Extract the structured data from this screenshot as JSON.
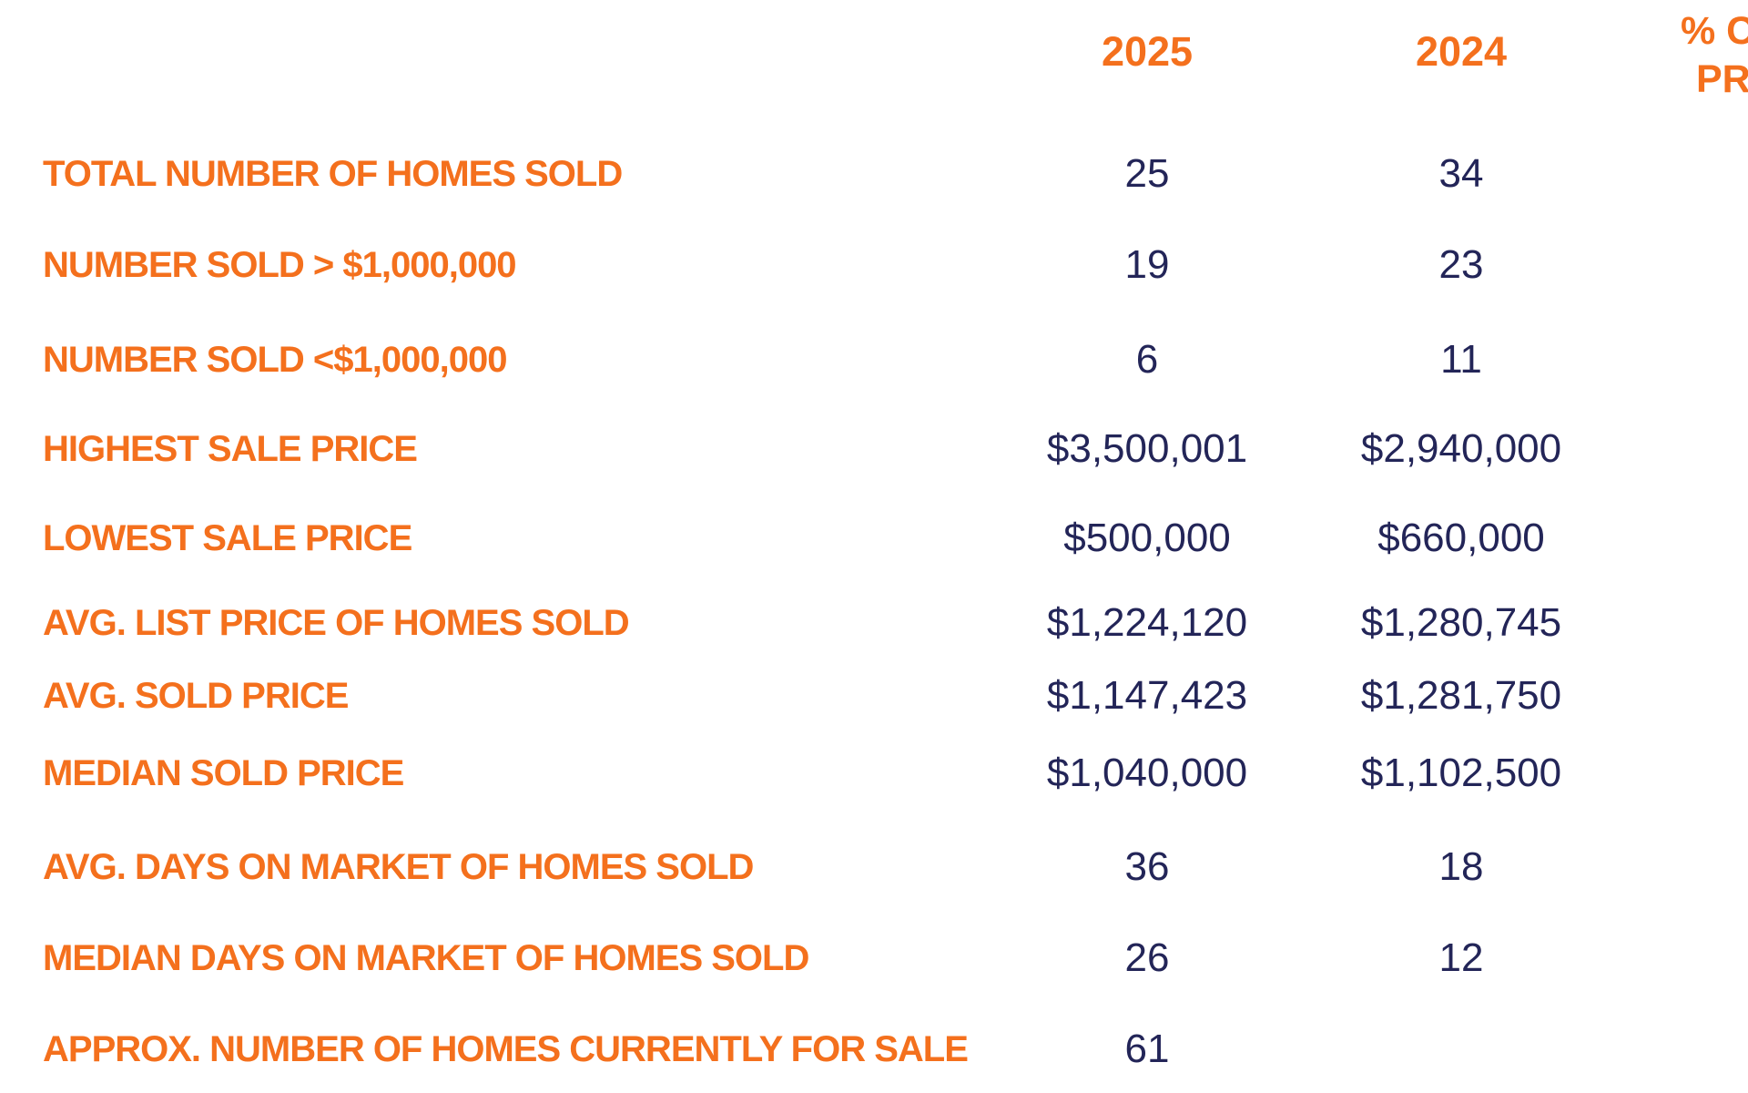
{
  "page": {
    "background": "#FFFFFF"
  },
  "colors": {
    "accent_orange": "#F4701D",
    "value_navy": "#232558"
  },
  "table": {
    "column_headers": {
      "col_2025": "2025",
      "col_2024": "2024",
      "pct_change_line1": "% CH",
      "pct_change_line2": "PRE"
    },
    "rows": [
      {
        "label": "TOTAL NUMBER OF HOMES SOLD",
        "y2025": "25",
        "y2024": "34"
      },
      {
        "label": "NUMBER SOLD > $1,000,000",
        "y2025": "19",
        "y2024": "23"
      },
      {
        "label": "NUMBER SOLD <$1,000,000",
        "y2025": "6",
        "y2024": "11"
      },
      {
        "label": "HIGHEST SALE PRICE",
        "y2025": "$3,500,001",
        "y2024": "$2,940,000"
      },
      {
        "label": "LOWEST SALE PRICE",
        "y2025": "$500,000",
        "y2024": "$660,000"
      },
      {
        "label": "AVG. LIST PRICE OF HOMES SOLD",
        "y2025": "$1,224,120",
        "y2024": "$1,280,745"
      },
      {
        "label": "AVG. SOLD PRICE",
        "y2025": "$1,147,423",
        "y2024": "$1,281,750"
      },
      {
        "label": "MEDIAN SOLD PRICE",
        "y2025": "$1,040,000",
        "y2024": "$1,102,500"
      },
      {
        "label": "AVG. DAYS ON MARKET OF HOMES SOLD",
        "y2025": "36",
        "y2024": "18"
      },
      {
        "label": "MEDIAN DAYS ON MARKET OF HOMES SOLD",
        "y2025": "26",
        "y2024": "12"
      },
      {
        "label": "APPROX. NUMBER OF HOMES CURRENTLY FOR SALE",
        "y2025": "61",
        "y2024": ""
      }
    ]
  }
}
